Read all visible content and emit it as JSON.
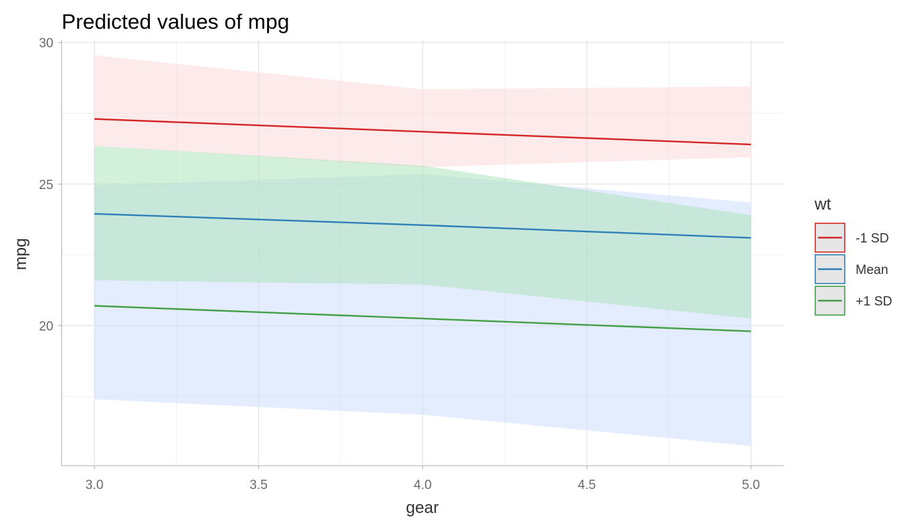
{
  "chart_data": {
    "type": "line",
    "title": "Predicted values of mpg",
    "xlabel": "gear",
    "ylabel": "mpg",
    "xlim": [
      2.9,
      5.1
    ],
    "ylim": [
      15.05,
      30.1
    ],
    "x_ticks": [
      3.0,
      3.5,
      4.0,
      4.5,
      5.0
    ],
    "x_tick_labels": [
      "3.0",
      "3.5",
      "4.0",
      "4.5",
      "5.0"
    ],
    "y_ticks": [
      20,
      25,
      30
    ],
    "y_tick_labels": [
      "20",
      "25",
      "30"
    ],
    "grid": true,
    "legend": {
      "title": "wt",
      "placement": "right"
    },
    "series": [
      {
        "name": "-1 SD",
        "color": "#d62728",
        "fill": "#fcd5d5",
        "x": [
          3,
          4,
          5
        ],
        "y": [
          27.3,
          26.85,
          26.4
        ],
        "lower": [
          26.35,
          25.6,
          25.95
        ],
        "upper": [
          29.55,
          28.35,
          28.45
        ]
      },
      {
        "name": "Mean",
        "color": "#2f7fb8",
        "fill": "#c9dcfb",
        "x": [
          3,
          4,
          5
        ],
        "y": [
          23.95,
          23.55,
          23.1
        ],
        "lower": [
          17.4,
          16.85,
          15.75
        ],
        "upper": [
          24.95,
          25.35,
          24.35
        ]
      },
      {
        "name": "+1 SD",
        "color": "#43a047",
        "fill": "#a8e2b7",
        "x": [
          3,
          4,
          5
        ],
        "y": [
          20.7,
          20.25,
          19.8
        ],
        "lower": [
          21.6,
          21.45,
          20.25
        ],
        "upper": [
          26.35,
          25.65,
          23.9
        ]
      }
    ]
  }
}
